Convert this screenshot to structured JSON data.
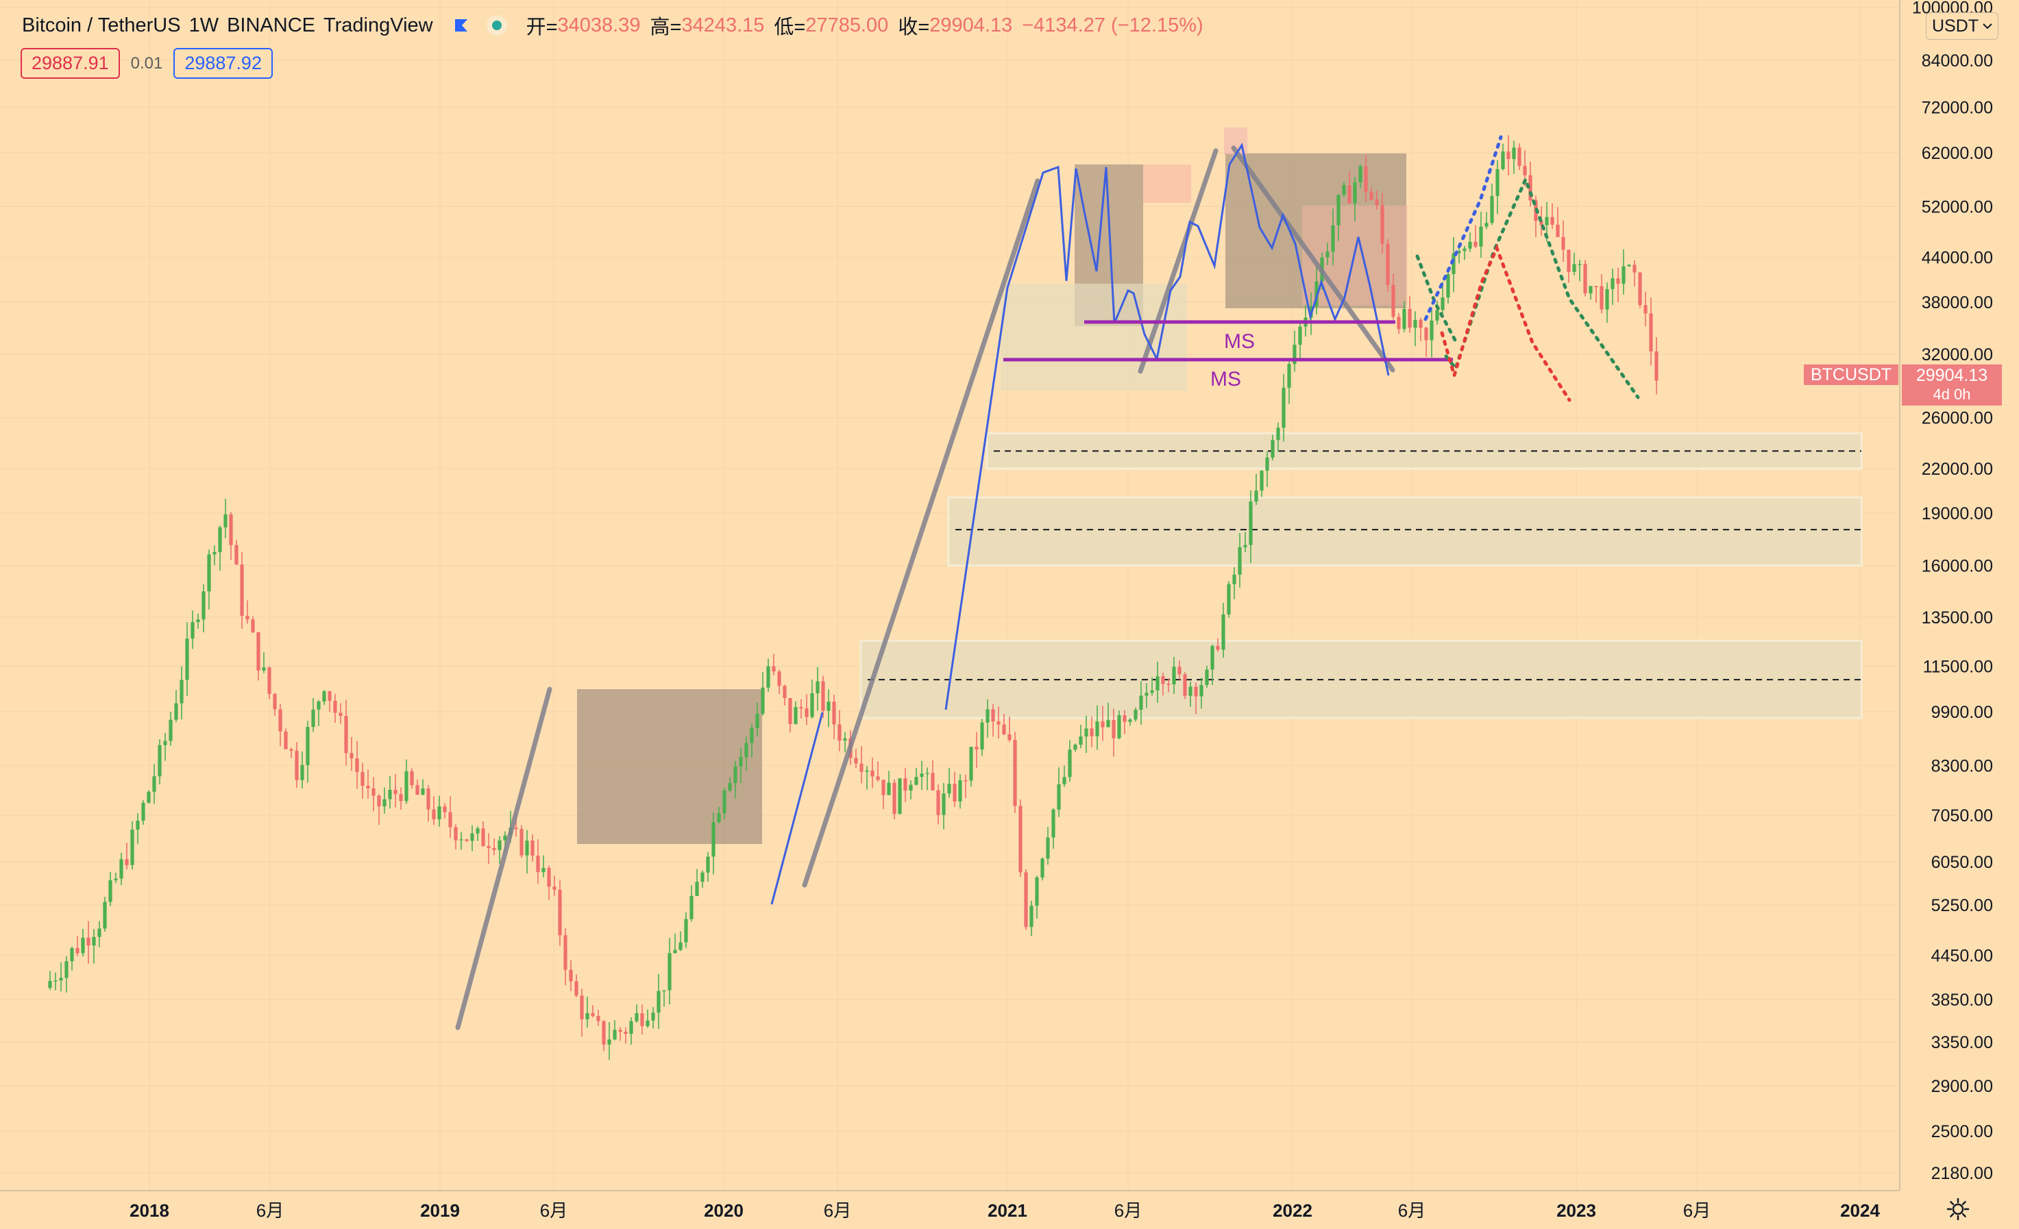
{
  "header": {
    "symbol": "Bitcoin / TetherUS",
    "interval": "1W",
    "exchange": "BINANCE",
    "source": "TradingView",
    "ohlc": {
      "open_label": "开=",
      "open": "34038.39",
      "high_label": "高=",
      "high": "34243.15",
      "low_label": "低=",
      "low": "27785.00",
      "close_label": "收=",
      "close": "29904.13",
      "change": "−4134.27 (−12.15%)"
    }
  },
  "order": {
    "sell": "29887.91",
    "spread": "0.01",
    "buy": "29887.92"
  },
  "currency_selector": {
    "value": "USDT"
  },
  "price_tag": {
    "symbol": "BTCUSDT",
    "price": "29904.13",
    "countdown": "4d 0h"
  },
  "annotations": [
    "MS",
    "MS"
  ],
  "colors": {
    "background": "#fddfb2",
    "up": "#4caf50",
    "down": "#ef6f6c",
    "accent": "#2962ff",
    "ms_line": "#9c27b0"
  },
  "chart_data": {
    "type": "candlestick",
    "y_scale": "log",
    "ylim": [
      2000,
      100000
    ],
    "y_ticks": [
      "100000.00",
      "84000.00",
      "72000.00",
      "62000.00",
      "52000.00",
      "44000.00",
      "38000.00",
      "32000.00",
      "26000.00",
      "22000.00",
      "19000.00",
      "16000.00",
      "13500.00",
      "11500.00",
      "9900.00",
      "8300.00",
      "7050.00",
      "6050.00",
      "5250.00",
      "4450.00",
      "3850.00",
      "3350.00",
      "2900.00",
      "2500.00",
      "2180.00"
    ],
    "x_ticks": [
      "2018",
      "6月",
      "2019",
      "6月",
      "2020",
      "6月",
      "2021",
      "6月",
      "2022",
      "6月",
      "2023",
      "6月",
      "2024"
    ],
    "waypoints": [
      [
        0,
        4000
      ],
      [
        4,
        4400
      ],
      [
        10,
        5000
      ],
      [
        16,
        6500
      ],
      [
        22,
        9000
      ],
      [
        27,
        13000
      ],
      [
        31,
        17500
      ],
      [
        33,
        19000
      ],
      [
        36,
        14000
      ],
      [
        41,
        10500
      ],
      [
        46,
        8200
      ],
      [
        51,
        11000
      ],
      [
        56,
        8500
      ],
      [
        60,
        7200
      ],
      [
        66,
        7800
      ],
      [
        72,
        7000
      ],
      [
        78,
        6500
      ],
      [
        84,
        6600
      ],
      [
        89,
        6300
      ],
      [
        93,
        5300
      ],
      [
        96,
        4000
      ],
      [
        99,
        3600
      ],
      [
        102,
        3400
      ],
      [
        106,
        3500
      ],
      [
        112,
        3900
      ],
      [
        118,
        5200
      ],
      [
        124,
        7900
      ],
      [
        128,
        8800
      ],
      [
        132,
        11500
      ],
      [
        136,
        9700
      ],
      [
        141,
        10500
      ],
      [
        146,
        9000
      ],
      [
        151,
        8200
      ],
      [
        155,
        7400
      ],
      [
        159,
        8300
      ],
      [
        163,
        7300
      ],
      [
        167,
        7700
      ],
      [
        172,
        9800
      ],
      [
        176,
        8800
      ],
      [
        179,
        5000
      ],
      [
        183,
        6800
      ],
      [
        188,
        8900
      ],
      [
        193,
        9500
      ],
      [
        198,
        9300
      ],
      [
        203,
        11500
      ],
      [
        208,
        10800
      ],
      [
        212,
        11000
      ],
      [
        216,
        14500
      ],
      [
        220,
        19000
      ],
      [
        224,
        24000
      ],
      [
        228,
        33000
      ],
      [
        232,
        41000
      ],
      [
        236,
        52000
      ],
      [
        240,
        58000
      ],
      [
        243,
        51000
      ],
      [
        246,
        37000
      ],
      [
        249,
        35000
      ],
      [
        252,
        33000
      ],
      [
        255,
        40000
      ],
      [
        258,
        47000
      ],
      [
        261,
        45000
      ],
      [
        264,
        55000
      ],
      [
        267,
        63000
      ],
      [
        270,
        58000
      ],
      [
        273,
        49000
      ],
      [
        276,
        47000
      ],
      [
        279,
        42000
      ],
      [
        282,
        40000
      ],
      [
        285,
        38000
      ],
      [
        288,
        43000
      ],
      [
        291,
        39000
      ],
      [
        294,
        30000
      ]
    ],
    "zones": [
      {
        "low": 22000,
        "high": 24700,
        "mid": 23300
      },
      {
        "low": 16000,
        "high": 20000,
        "mid": 18000
      },
      {
        "low": 9700,
        "high": 12500,
        "mid": 11000
      }
    ]
  }
}
